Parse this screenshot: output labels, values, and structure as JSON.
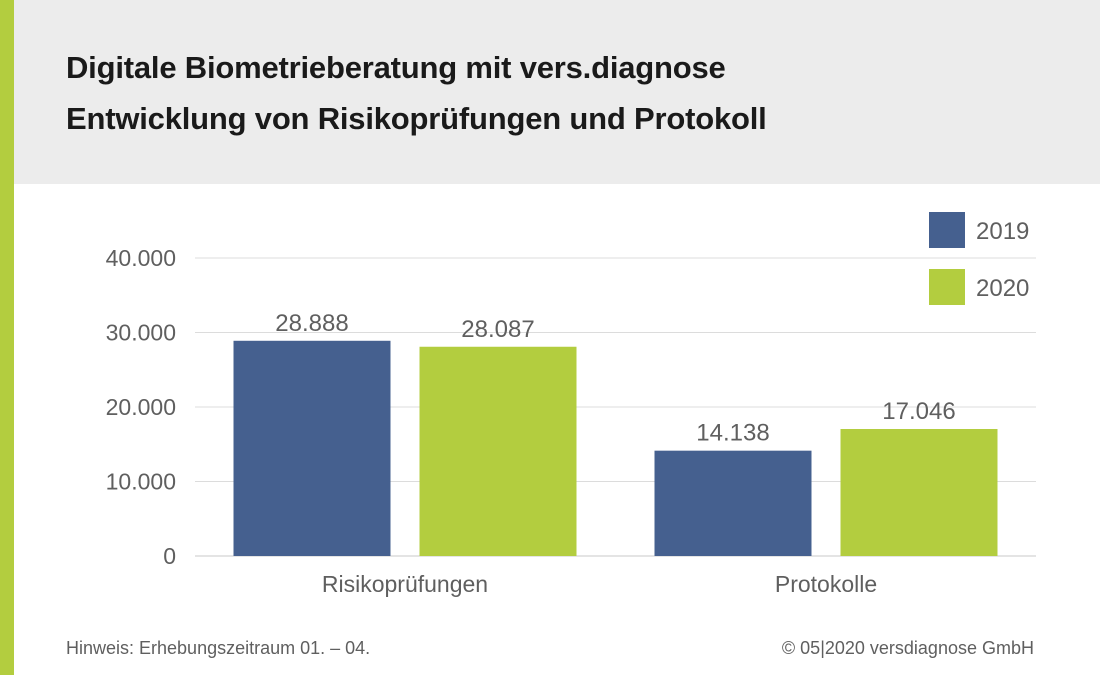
{
  "header": {
    "title": "Digitale Biometrieberatung mit vers.diagnose",
    "subtitle": "Entwicklung von Risikoprüfungen und Protokoll"
  },
  "footer": {
    "note": "Hinweis: Erhebungszeitraum 01. – 04.",
    "copyright": "© 05|2020 versdiagnose GmbH"
  },
  "colors": {
    "accent": "#b3cd3f",
    "header_bg": "#ececec",
    "series_2019": "#45608f",
    "series_2020": "#b3cd3f",
    "grid": "#dcdcdc",
    "text": "#5f5f5f"
  },
  "chart_data": {
    "type": "bar",
    "categories": [
      "Risikoprüfungen",
      "Protokolle"
    ],
    "series": [
      {
        "name": "2019",
        "color": "#45608f",
        "values": [
          28888,
          14138
        ],
        "labels": [
          "28.888",
          "14.138"
        ]
      },
      {
        "name": "2020",
        "color": "#b3cd3f",
        "values": [
          28087,
          17046
        ],
        "labels": [
          "28.087",
          "17.046"
        ]
      }
    ],
    "yticks": [
      {
        "value": 0,
        "label": "0"
      },
      {
        "value": 10000,
        "label": "10.000"
      },
      {
        "value": 20000,
        "label": "20.000"
      },
      {
        "value": 30000,
        "label": "30.000"
      },
      {
        "value": 40000,
        "label": "40.000"
      }
    ],
    "ylim": [
      0,
      40000
    ],
    "grid": true,
    "legend_position": "top-right",
    "title": "Digitale Biometrieberatung mit vers.diagnose",
    "subtitle": "Entwicklung von Risikoprüfungen und Protokoll",
    "xlabel": "",
    "ylabel": ""
  }
}
